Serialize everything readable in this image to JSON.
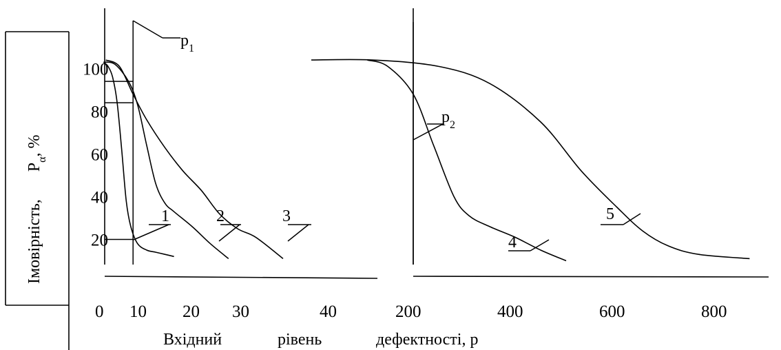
{
  "ylabel_main": "Імовірність,",
  "ylabel_symbol": "P",
  "ylabel_sub": "α",
  "ylabel_unit": ", %",
  "xlabel_parts": [
    "Вхідний",
    "рівень",
    "дефектності, p"
  ],
  "annotations": {
    "p1": {
      "base": "p",
      "sub": "1"
    },
    "p2": {
      "base": "p",
      "sub": "2"
    }
  },
  "chart_data": [
    {
      "type": "line",
      "title": "",
      "xlabel": "Вхідний рівень дефектності, p",
      "ylabel": "Імовірність, Pα, %",
      "x_ticks": [
        0,
        10,
        20,
        30,
        40
      ],
      "y_ticks": [
        20,
        40,
        60,
        80,
        100
      ],
      "xlim": [
        0,
        48
      ],
      "ylim": [
        10,
        105
      ],
      "grid": false,
      "legend": "none",
      "guide_lines": {
        "p1": 7,
        "probability_levels": [
          20,
          84,
          94
        ]
      },
      "series": [
        {
          "name": "1",
          "x": [
            0.5,
            1.5,
            2.5,
            3.5,
            4.5,
            5.5,
            6.5,
            8,
            10,
            12,
            14,
            16
          ],
          "y": [
            103,
            101,
            96,
            84,
            62,
            38,
            26,
            18,
            15,
            14,
            13,
            12
          ]
        },
        {
          "name": "2",
          "x": [
            0.5,
            3,
            6,
            8,
            10,
            12,
            14,
            16,
            20,
            24,
            28
          ],
          "y": [
            103,
            102,
            94,
            83,
            64,
            46,
            37,
            33,
            26,
            18,
            11
          ]
        },
        {
          "name": "3",
          "x": [
            1,
            4,
            7,
            10,
            14,
            18,
            22,
            26,
            30,
            34,
            40
          ],
          "y": [
            104,
            101,
            88,
            76,
            63,
            52,
            43,
            32,
            25,
            21,
            11
          ]
        }
      ]
    },
    {
      "type": "line",
      "title": "",
      "xlabel": "Вхідний рівень дефектності, p",
      "ylabel": "Імовірність, Pα, %",
      "x_ticks": [
        200,
        400,
        600,
        800
      ],
      "xlim": [
        0,
        950
      ],
      "ylim": [
        10,
        105
      ],
      "grid": false,
      "legend": "none",
      "guide_lines": {
        "p2": 200,
        "probability_level": 89
      },
      "series": [
        {
          "name": "4",
          "x": [
            110,
            150,
            200,
            240,
            280,
            310,
            350,
            400,
            450,
            500
          ],
          "y": [
            104,
            101,
            88,
            64,
            40,
            31,
            26,
            21,
            15,
            10
          ]
        },
        {
          "name": "5",
          "x": [
            0,
            120,
            250,
            350,
            450,
            530,
            600,
            650,
            700,
            760,
            860
          ],
          "y": [
            104,
            104,
            101,
            93,
            75,
            52,
            35,
            24,
            17,
            13,
            11
          ]
        }
      ]
    }
  ]
}
